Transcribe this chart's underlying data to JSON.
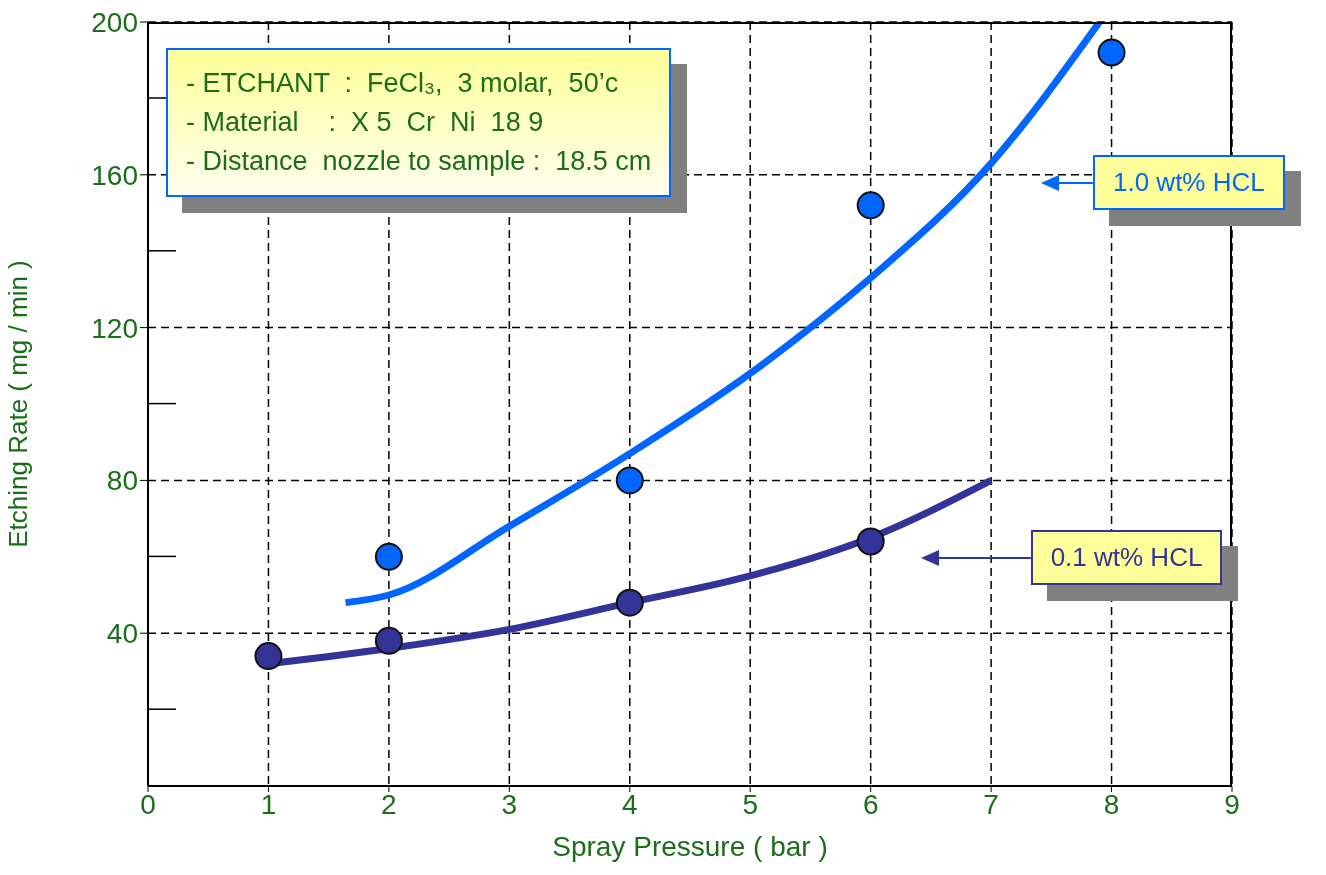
{
  "chart_data": {
    "type": "scatter",
    "xlabel": "Spray  Pressure  ( bar )",
    "ylabel": "Etching  Rate  ( mg / min )",
    "xlim": [
      0,
      9
    ],
    "xticks": [
      0,
      1,
      2,
      3,
      4,
      5,
      6,
      7,
      8,
      9
    ],
    "ylim": [
      0,
      200
    ],
    "yticks": [
      40,
      80,
      120,
      160,
      200
    ],
    "grid": true,
    "marker": "circle",
    "legend": "right",
    "annotations": [
      "- ETCHANT  :  FeCl₃,  3 molar,  50’c",
      "- Material    :  X 5  Cr  Ni  18 9",
      "- Distance  nozzle to sample :  18.5 cm"
    ],
    "series": [
      {
        "type": "line",
        "marker": "none",
        "color": "#0066ff",
        "x": [
          1.64,
          2,
          3,
          4,
          5,
          6,
          7,
          7.9
        ],
        "values": [
          48,
          50,
          68,
          87,
          108,
          133,
          163,
          200
        ]
      },
      {
        "type": "line",
        "marker": "none",
        "color": "#333399",
        "x": [
          1,
          2,
          3,
          4,
          5,
          6,
          7
        ],
        "values": [
          32,
          36,
          41,
          48,
          55,
          65,
          80
        ]
      },
      {
        "name": "1.0 wt% HCL",
        "color": "#0066ff",
        "x": [
          2,
          4,
          6,
          8
        ],
        "values": [
          60,
          80,
          152,
          192
        ]
      },
      {
        "name": "0.1 wt% HCL",
        "color": "#333399",
        "x": [
          1,
          2,
          4,
          6
        ],
        "values": [
          34,
          38,
          48,
          64
        ]
      }
    ]
  }
}
